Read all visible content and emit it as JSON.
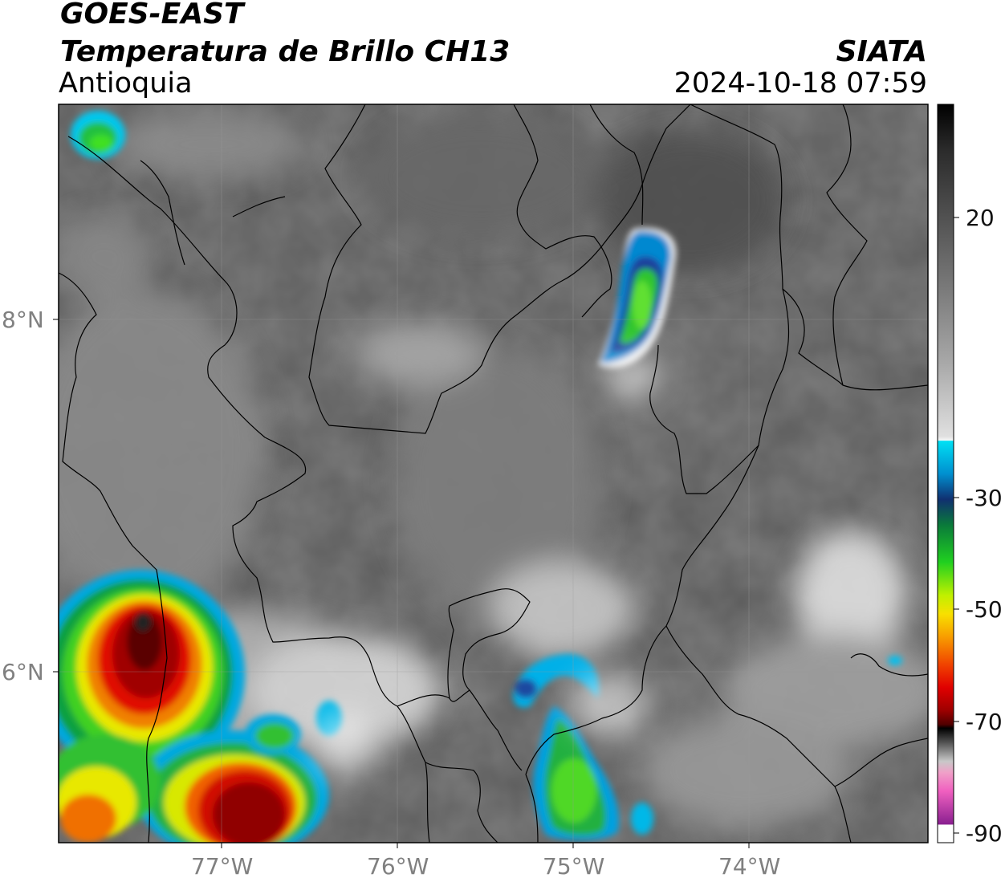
{
  "header": {
    "satellite": "GOES-EAST",
    "product": "Temperatura de Brillo CH13",
    "region": "Antioquia",
    "agency": "SIATA",
    "datetime": "2024-10-18 07:59"
  },
  "map": {
    "lat_ticks": [
      "8°N",
      "6°N"
    ],
    "lon_ticks": [
      "77°W",
      "76°W",
      "75°W",
      "74°W"
    ]
  },
  "colorbar": {
    "ticks": [
      "20",
      "-30",
      "-50",
      "-70",
      "-90"
    ],
    "colors": {
      "gray_low": "#4a4a4a",
      "white": "#f8f8f8",
      "cyan": "#00d8f0",
      "blue": "#1a3d9c",
      "green": "#2ec42e",
      "yellow": "#f0e000",
      "orange": "#f08c00",
      "red": "#e01000",
      "dark_red": "#6a0000",
      "black": "#000000",
      "pink": "#f060c0",
      "purple": "#8a2090"
    }
  }
}
